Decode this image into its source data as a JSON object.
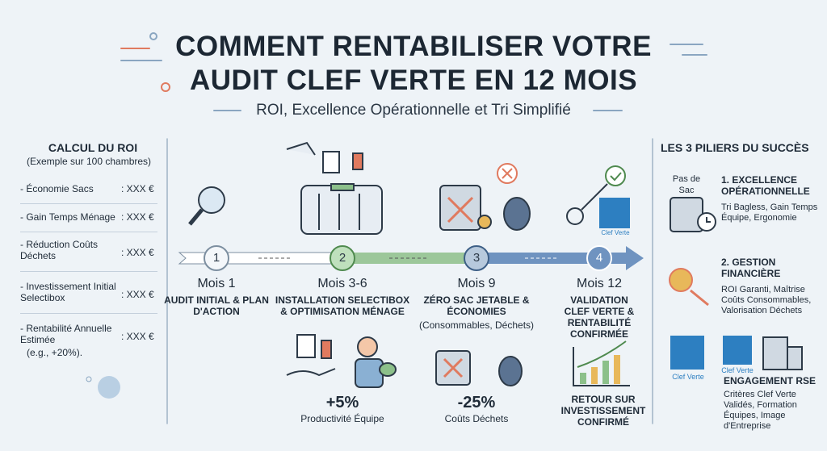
{
  "header": {
    "title_lines": [
      "COMMENT RENTABILISER VOTRE",
      "AUDIT CLEF VERTE EN 12 MOIS"
    ],
    "subtitle": "ROI, Excellence Opérationnelle et Tri Simplifié"
  },
  "roi": {
    "title": "CALCUL DU ROI",
    "note": "(Exemple sur 100 chambres)",
    "rows": [
      {
        "label": "- Économie Sacs",
        "value": ": XXX €"
      },
      {
        "label": "- Gain Temps Ménage",
        "value": ": XXX €"
      },
      {
        "label": "- Réduction Coûts Déchets",
        "value": ": XXX €"
      },
      {
        "label": "- Investissement Initial Selectibox",
        "value": ": XXX €"
      },
      {
        "label": "- Rentabilité Annuelle Estimée",
        "sub": "(e.g., +20%).",
        "value": ": XXX €"
      }
    ]
  },
  "timeline": {
    "steps": [
      {
        "number": "1",
        "month": "Mois 1",
        "title": "AUDIT INITIAL & PLAN D'ACTION"
      },
      {
        "number": "2",
        "month": "Mois 3-6",
        "title": "INSTALLATION SELECTIBOX & OPTIMISATION MÉNAGE",
        "metric": "+5%",
        "caption": "Productivité Équipe"
      },
      {
        "number": "3",
        "month": "Mois 9",
        "title": "ZÉRO SAC JETABLE & ÉCONOMIES",
        "sub": "(Consommables, Déchets)",
        "metric": "-25%",
        "caption": "Coûts Déchets"
      },
      {
        "number": "4",
        "month": "Mois 12",
        "title": "VALIDATION CLEF VERTE & RENTABILITÉ CONFIRMÉE",
        "logo": "Clef Verte",
        "result": "RETOUR SUR INVESTISSEMENT CONFIRMÉ"
      }
    ]
  },
  "pillars": {
    "title": "LES 3 PILIERS DU SUCCÈS",
    "items": [
      {
        "icon_label": "Pas de Sac",
        "title": "1. EXCELLENCE OPÉRATIONNELLE",
        "text": "Tri Bagless, Gain Temps Équipe, Ergonomie"
      },
      {
        "title": "2. GESTION FINANCIÈRE",
        "text": "ROI Garanti, Maîtrise Coûts Consommables, Valorisation Déchets"
      },
      {
        "logo_a": "Clef Verte",
        "logo_b": "Clef Verte",
        "title": "ENGAGEMENT RSE",
        "text": "Critères Clef Verte Validés, Formation Équipes, Image d'Entreprise"
      }
    ]
  }
}
